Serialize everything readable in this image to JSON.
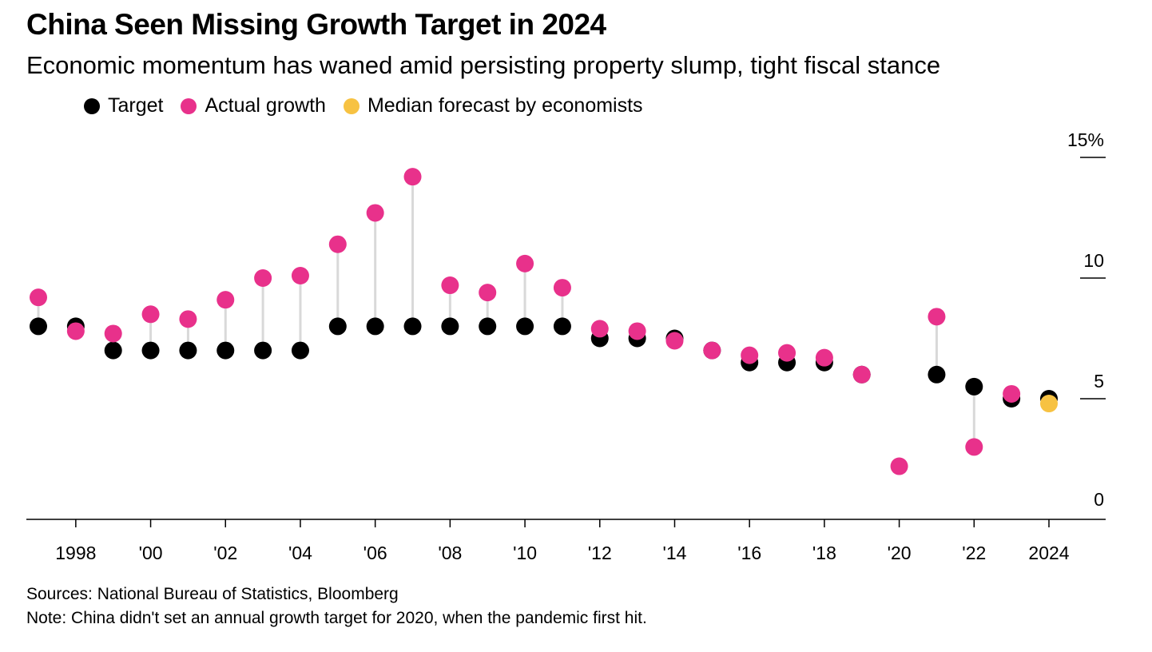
{
  "title": "China Seen Missing Growth Target in 2024",
  "subtitle": "Economic momentum has waned amid persisting property slump, tight fiscal stance",
  "legend": [
    {
      "label": "Target",
      "color": "#000000"
    },
    {
      "label": "Actual growth",
      "color": "#e8318b"
    },
    {
      "label": "Median forecast by economists",
      "color": "#f7c242"
    }
  ],
  "footer": {
    "source": "Sources: National Bureau of Statistics, Bloomberg",
    "note": "Note: China didn't set an annual growth target for 2020, when the pandemic first hit."
  },
  "chart_data": {
    "type": "scatter",
    "x": [
      1997,
      1998,
      1999,
      2000,
      2001,
      2002,
      2003,
      2004,
      2005,
      2006,
      2007,
      2008,
      2009,
      2010,
      2011,
      2012,
      2013,
      2014,
      2015,
      2016,
      2017,
      2018,
      2019,
      2020,
      2021,
      2022,
      2023,
      2024
    ],
    "series": [
      {
        "name": "Target",
        "color": "#000000",
        "values": [
          8,
          8,
          7,
          7,
          7,
          7,
          7,
          7,
          8,
          8,
          8,
          8,
          8,
          8,
          8,
          7.5,
          7.5,
          7.5,
          7,
          6.5,
          6.5,
          6.5,
          6,
          null,
          6,
          5.5,
          5,
          5
        ]
      },
      {
        "name": "Actual growth",
        "color": "#e8318b",
        "values": [
          9.2,
          7.8,
          7.7,
          8.5,
          8.3,
          9.1,
          10.0,
          10.1,
          11.4,
          12.7,
          14.2,
          9.7,
          9.4,
          10.6,
          9.6,
          7.9,
          7.8,
          7.4,
          7.0,
          6.8,
          6.9,
          6.7,
          6.0,
          2.2,
          8.4,
          3.0,
          5.2,
          null
        ]
      },
      {
        "name": "Median forecast by economists",
        "color": "#f7c242",
        "values": [
          null,
          null,
          null,
          null,
          null,
          null,
          null,
          null,
          null,
          null,
          null,
          null,
          null,
          null,
          null,
          null,
          null,
          null,
          null,
          null,
          null,
          null,
          null,
          null,
          null,
          null,
          null,
          4.8
        ]
      }
    ],
    "x_tick_values": [
      1998,
      2000,
      2002,
      2004,
      2006,
      2008,
      2010,
      2012,
      2014,
      2016,
      2018,
      2020,
      2022,
      2024
    ],
    "x_tick_labels": [
      "1998",
      "'00",
      "'02",
      "'04",
      "'06",
      "'08",
      "'10",
      "'12",
      "'14",
      "'16",
      "'18",
      "'20",
      "'22",
      "2024"
    ],
    "y_ticks": [
      0,
      5,
      10,
      15
    ],
    "y_tick_labels": [
      "0",
      "5",
      "10",
      "15%"
    ],
    "ylim": [
      0,
      15
    ],
    "connector_color": "#d9d9d9"
  }
}
